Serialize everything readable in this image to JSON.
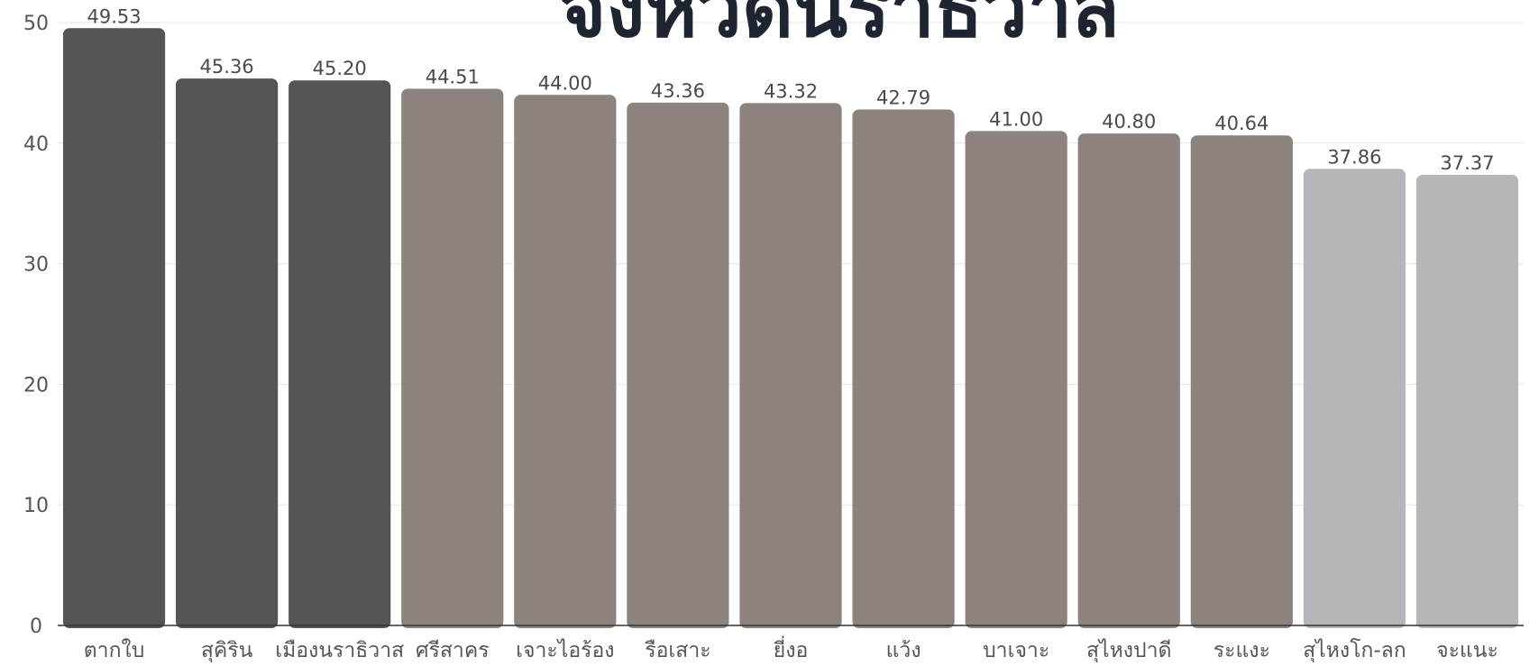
{
  "chart_data": {
    "type": "bar",
    "title": "จังหวัดนราธิวาส",
    "xlabel": "",
    "ylabel": "",
    "ylim": [
      0,
      50
    ],
    "yticks": [
      0,
      10,
      20,
      30,
      40,
      50
    ],
    "grid": true,
    "categories": [
      "ตากใบ",
      "สุคิริน",
      "เมืองนราธิวาส",
      "ศรีสาคร",
      "เจาะไอร้อง",
      "รือเสาะ",
      "ยี่งอ",
      "แว้ง",
      "บาเจาะ",
      "สุไหงปาดี",
      "ระแงะ",
      "สุไหงโก-ลก",
      "จะแนะ"
    ],
    "values": [
      49.53,
      45.36,
      45.2,
      44.51,
      44.0,
      43.36,
      43.32,
      42.79,
      41.0,
      40.8,
      40.64,
      37.86,
      37.37
    ],
    "value_labels": [
      "49.53",
      "45.36",
      "45.20",
      "44.51",
      "44.00",
      "43.36",
      "43.32",
      "42.79",
      "41.00",
      "40.80",
      "40.64",
      "37.86",
      "37.37"
    ],
    "bar_colors": [
      "#545557",
      "#545557",
      "#545557",
      "#8c837e",
      "#8c837e",
      "#8c837e",
      "#8c837e",
      "#8c837e",
      "#8c837e",
      "#8c837e",
      "#8c837e",
      "#b5b6b9",
      "#b5b6b9"
    ],
    "colors": {
      "title": "#1f2530",
      "axis_text": "#555555",
      "value_label": "#4a4a4a",
      "grid": "#e6e6e6",
      "baseline": "#333333"
    }
  }
}
